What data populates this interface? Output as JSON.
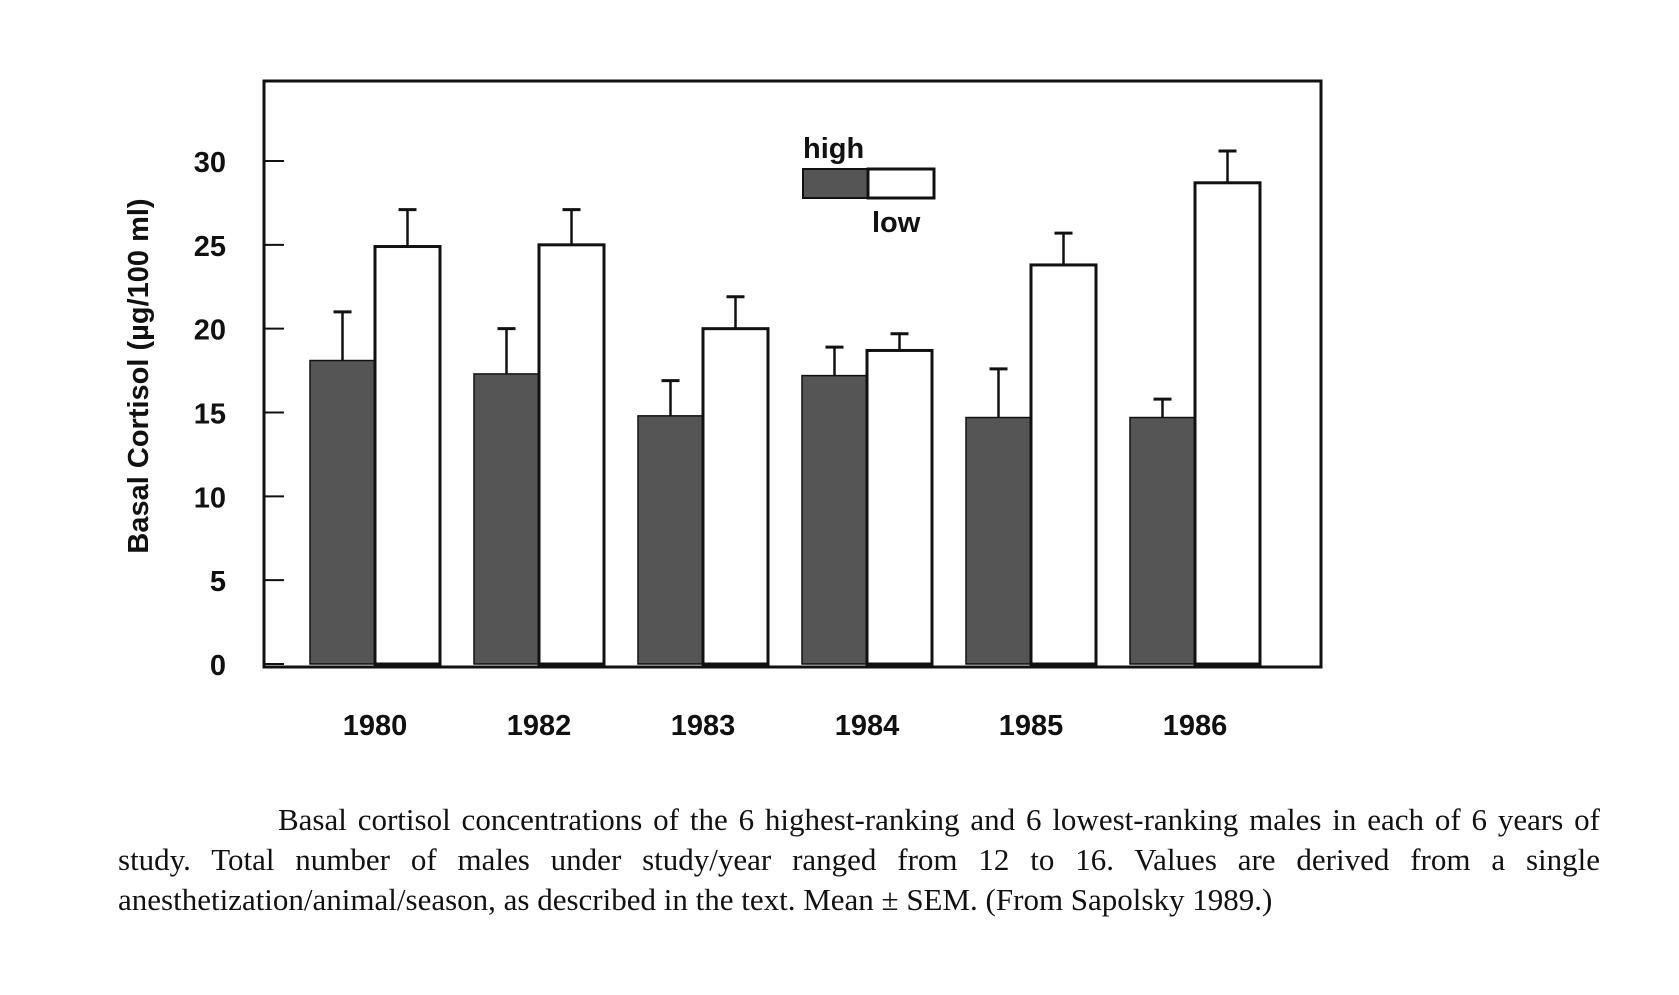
{
  "chart_data": {
    "type": "bar",
    "title": "",
    "xlabel": "",
    "ylabel": "Basal Cortisol (µg/100 ml)",
    "ylim": [
      0,
      35
    ],
    "yticks": [
      0,
      5,
      10,
      15,
      20,
      25,
      30
    ],
    "categories": [
      "1980",
      "1982",
      "1983",
      "1984",
      "1985",
      "1986"
    ],
    "series": [
      {
        "name": "high",
        "color": "#555555",
        "values": [
          18.1,
          17.3,
          14.8,
          17.2,
          14.7,
          14.7
        ],
        "sem": [
          2.9,
          2.7,
          2.1,
          1.7,
          2.9,
          1.1
        ]
      },
      {
        "name": "low",
        "color": "#ffffff",
        "values": [
          24.9,
          25.0,
          20.0,
          18.7,
          23.8,
          28.7
        ],
        "sem": [
          2.2,
          2.1,
          1.9,
          1.0,
          1.9,
          1.9
        ]
      }
    ],
    "legend": {
      "position": "top-center",
      "labels": [
        "high",
        "low"
      ]
    },
    "grid": false
  },
  "caption": "Basal cortisol concentrations of the 6 highest-ranking and 6 lowest-ranking males in each of 6 years of study. Total number of males under study/year ranged from 12 to 16. Values are derived from a single anesthetization/animal/season, as described in the text. Mean ± SEM. (From Sapolsky 1989.)"
}
